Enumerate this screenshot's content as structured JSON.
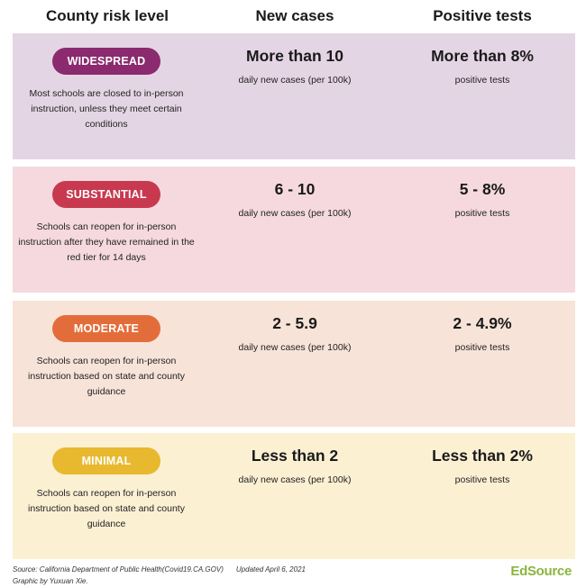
{
  "header": {
    "col_risk": "County risk level",
    "col_cases": "New cases",
    "col_tests": "Positive tests"
  },
  "tiers": [
    {
      "label": "WIDESPREAD",
      "color": "#8b2a6e",
      "background": "#e4d5e4",
      "description": "Most schools are closed to in-person instruction, unless they meet certain conditions",
      "cases_value": "More than 10",
      "cases_label": "daily new cases (per 100k)",
      "tests_value": "More than 8%",
      "tests_label": "positive tests"
    },
    {
      "label": "SUBSTANTIAL",
      "color": "#c8394f",
      "background": "#f5d9de",
      "description": "Schools can reopen for in-person instruction after they have remained in the red tier for 14 days",
      "cases_value": "6 - 10",
      "cases_label": "daily new cases (per 100k)",
      "tests_value": "5 - 8%",
      "tests_label": "positive tests"
    },
    {
      "label": "MODERATE",
      "color": "#e36d3a",
      "background": "#f7e3d8",
      "description": "Schools can reopen for in-person instruction based on state and county guidance",
      "cases_value": "2 - 5.9",
      "cases_label": "daily new cases (per 100k)",
      "tests_value": "2 - 4.9%",
      "tests_label": "positive tests"
    },
    {
      "label": "MINIMAL",
      "color": "#e8b92f",
      "background": "#fcf0d3",
      "description": "Schools can reopen for in-person instruction based on state and county guidance",
      "cases_value": "Less than 2",
      "cases_label": "daily new cases (per 100k)",
      "tests_value": "Less than 2%",
      "tests_label": "positive tests"
    }
  ],
  "footer": {
    "source": "Source: California Department of Public Health(Covid19.CA.GOV)",
    "updated": "Updated April 6, 2021",
    "credit": "Graphic by Yuxuan Xie.",
    "logo_part1": "Ed",
    "logo_part2": "Source",
    "logo_color": "#8bb43c"
  }
}
